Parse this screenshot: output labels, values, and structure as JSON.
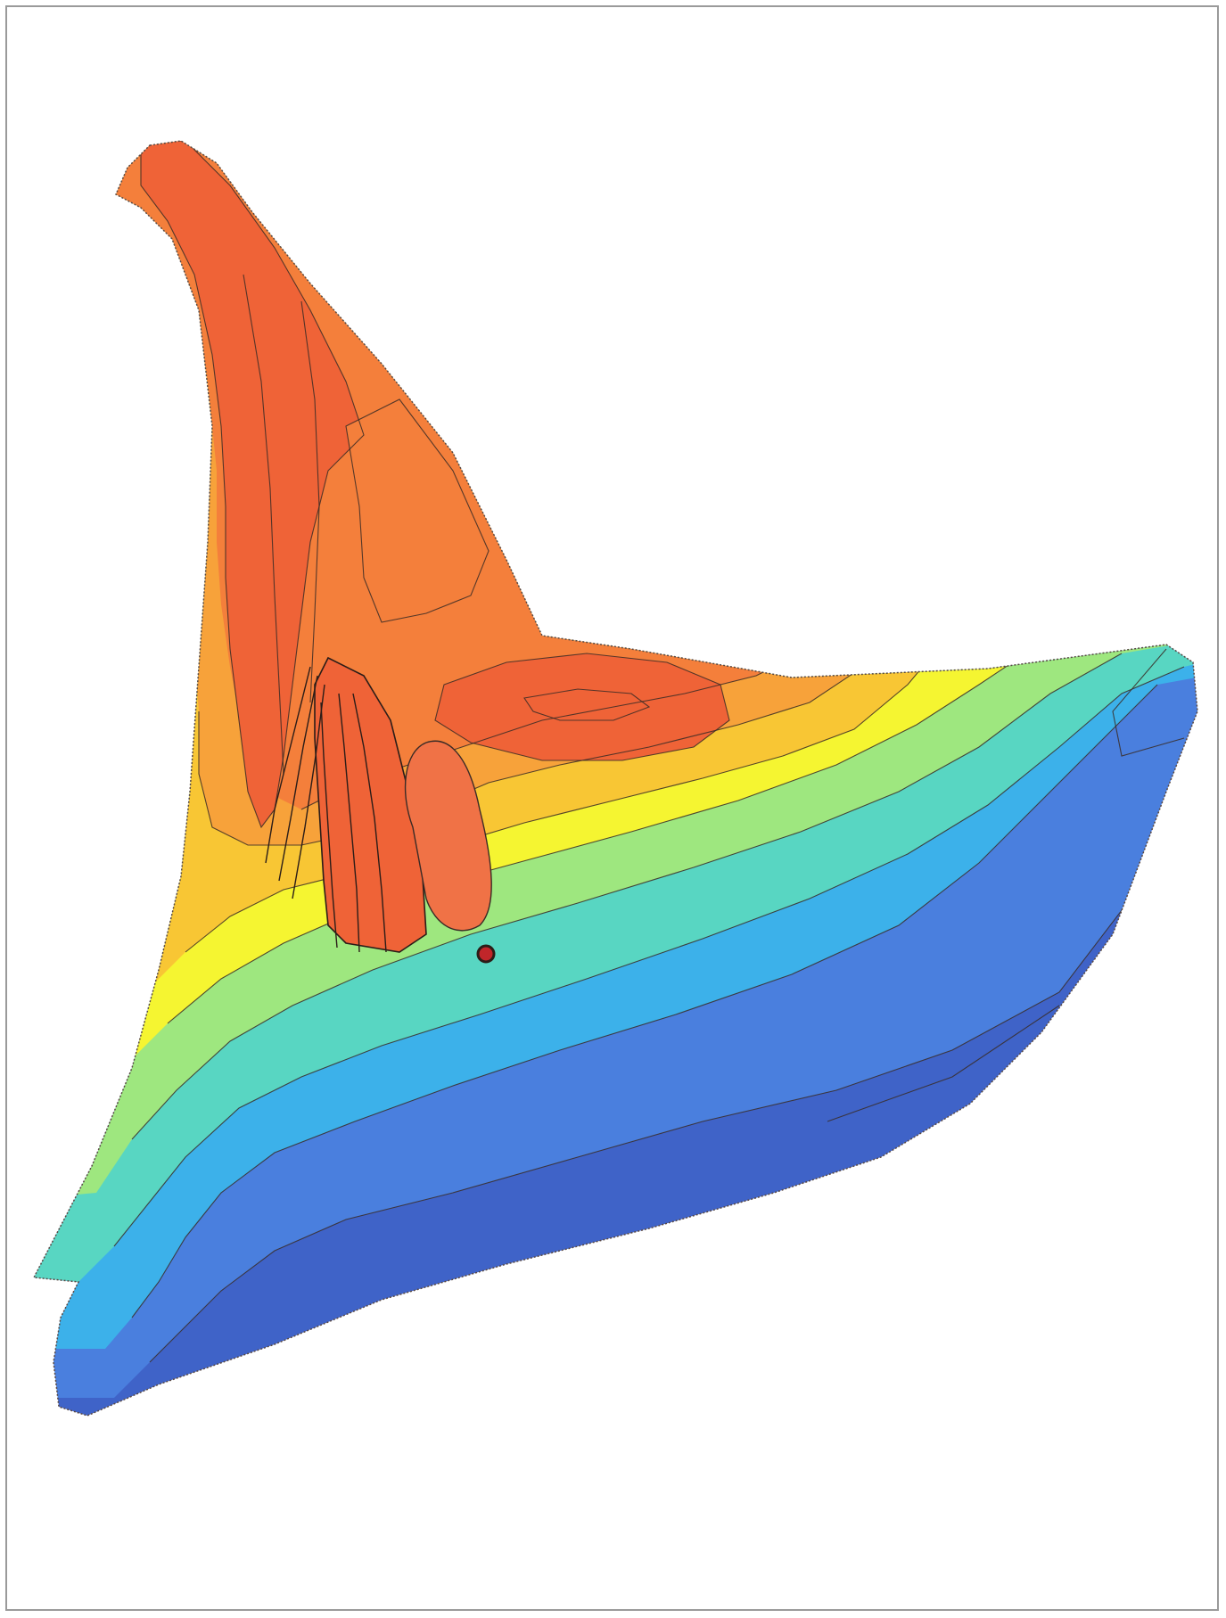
{
  "map": {
    "type": "contour-map",
    "labels": [],
    "color_ramp": [
      "#3f63c8",
      "#4a7fde",
      "#3cb1ea",
      "#58d6c2",
      "#9ee77f",
      "#f5f531",
      "#f8c634",
      "#f7a23a",
      "#f47f3b",
      "#ef6337"
    ],
    "features": [
      {
        "kind": "basin",
        "color": "#ef6337"
      },
      {
        "kind": "point-marker",
        "color": "#c0262a"
      }
    ]
  }
}
